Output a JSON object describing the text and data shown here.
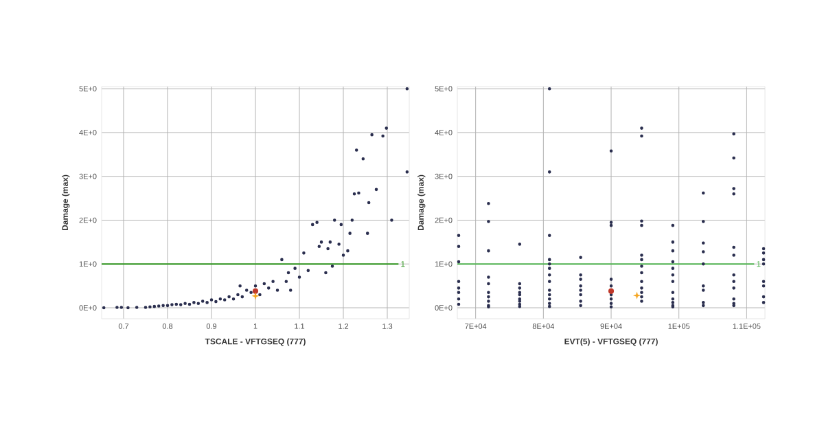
{
  "chart_data": [
    {
      "type": "scatter",
      "xlabel": "TSCALE - VFTGSEQ (777)",
      "ylabel": "Damage (max)",
      "marker": "circle",
      "grid": true,
      "xlim": [
        0.65,
        1.35
      ],
      "ylim": [
        -0.25,
        5.05
      ],
      "xticks": [
        0.7,
        0.8,
        0.9,
        1,
        1.1,
        1.2,
        1.3
      ],
      "yticks": [
        {
          "value": 0,
          "label": "0E+0"
        },
        {
          "value": 1,
          "label": "1E+0"
        },
        {
          "value": 2,
          "label": "2E+0"
        },
        {
          "value": 3,
          "label": "3E+0"
        },
        {
          "value": 4,
          "label": "4E+0"
        },
        {
          "value": 5,
          "label": "5E+0"
        }
      ],
      "ref_lines": [
        {
          "axis": "y",
          "value": 1,
          "label": "1",
          "color": "#3a9a2a"
        }
      ],
      "series": [
        {
          "color": "#2b2f4f",
          "x": [
            0.655,
            0.685,
            0.695,
            0.71,
            0.73,
            0.75,
            0.76,
            0.77,
            0.78,
            0.79,
            0.8,
            0.81,
            0.82,
            0.83,
            0.84,
            0.85,
            0.86,
            0.87,
            0.88,
            0.89,
            0.9,
            0.91,
            0.92,
            0.93,
            0.94,
            0.95,
            0.96,
            0.965,
            0.97,
            0.98,
            0.99,
            1.0,
            1.01,
            1.02,
            1.03,
            1.04,
            1.05,
            1.06,
            1.07,
            1.075,
            1.08,
            1.09,
            1.1,
            1.11,
            1.12,
            1.13,
            1.14,
            1.145,
            1.15,
            1.16,
            1.165,
            1.17,
            1.175,
            1.18,
            1.19,
            1.195,
            1.2,
            1.21,
            1.215,
            1.22,
            1.225,
            1.23,
            1.235,
            1.245,
            1.255,
            1.258,
            1.265,
            1.275,
            1.29,
            1.298,
            1.31,
            1.345,
            1.345
          ],
          "values": [
            0,
            0.01,
            0.01,
            0,
            0.01,
            0.01,
            0.02,
            0.03,
            0.04,
            0.05,
            0.05,
            0.07,
            0.08,
            0.07,
            0.1,
            0.08,
            0.12,
            0.1,
            0.15,
            0.12,
            0.18,
            0.14,
            0.2,
            0.18,
            0.25,
            0.2,
            0.3,
            0.5,
            0.25,
            0.4,
            0.35,
            0.5,
            0.3,
            0.55,
            0.45,
            0.6,
            0.4,
            1.1,
            0.6,
            0.8,
            0.4,
            0.9,
            0.7,
            1.25,
            0.85,
            1.9,
            1.95,
            1.4,
            1.5,
            0.8,
            1.35,
            1.5,
            0.95,
            2.0,
            1.45,
            1.9,
            1.2,
            1.3,
            1.7,
            2.0,
            2.6,
            3.6,
            2.62,
            3.4,
            1.7,
            2.4,
            3.95,
            2.7,
            3.92,
            4.1,
            2.0,
            3.1,
            5.0
          ]
        },
        {
          "color": "#c0392b",
          "x": [
            1.0
          ],
          "values": [
            0.38
          ]
        },
        {
          "color": "#f5a623",
          "marker": "star",
          "x": [
            1.0
          ],
          "values": [
            0.27
          ]
        }
      ]
    },
    {
      "type": "scatter",
      "xlabel": "EVT(5) - VFTGSEQ (777)",
      "ylabel": "Damage (max)",
      "marker": "circle",
      "grid": true,
      "xlim": [
        67300,
        112700
      ],
      "ylim": [
        -0.25,
        5.05
      ],
      "xticks": [
        {
          "value": 70000,
          "label": "7E+04"
        },
        {
          "value": 80000,
          "label": "8E+04"
        },
        {
          "value": 90000,
          "label": "9E+04"
        },
        {
          "value": 100000,
          "label": "1E+05"
        },
        {
          "value": 110000,
          "label": "1.1E+05"
        }
      ],
      "yticks": [
        {
          "value": 0,
          "label": "0E+0"
        },
        {
          "value": 1,
          "label": "1E+0"
        },
        {
          "value": 2,
          "label": "2E+0"
        },
        {
          "value": 3,
          "label": "3E+0"
        },
        {
          "value": 4,
          "label": "4E+0"
        },
        {
          "value": 5,
          "label": "5E+0"
        }
      ],
      "ref_lines": [
        {
          "axis": "y",
          "value": 1,
          "label": "1",
          "color": "#5cb85c"
        }
      ],
      "series": [
        {
          "color": "#2b2f4f",
          "x": [
            67500,
            67500,
            67500,
            67500,
            67500,
            67500,
            67500,
            67500,
            71900,
            71900,
            71900,
            71900,
            71900,
            71900,
            71900,
            71900,
            71900,
            71900,
            76500,
            76500,
            76500,
            76500,
            76500,
            76500,
            76500,
            76500,
            76500,
            80900,
            80900,
            80900,
            80900,
            80900,
            80900,
            80900,
            80900,
            80900,
            80900,
            80900,
            80900,
            80900,
            85500,
            85500,
            85500,
            85500,
            85500,
            85500,
            85500,
            85500,
            90000,
            90000,
            90000,
            90000,
            90000,
            90000,
            90000,
            90000,
            90000,
            94500,
            94500,
            94500,
            94500,
            94500,
            94500,
            94500,
            94500,
            94500,
            94500,
            94500,
            94500,
            94500,
            99100,
            99100,
            99100,
            99100,
            99100,
            99100,
            99100,
            99100,
            99100,
            99100,
            99100,
            99100,
            103600,
            103600,
            103600,
            103600,
            103600,
            103600,
            103600,
            103600,
            103600,
            108100,
            108100,
            108100,
            108100,
            108100,
            108100,
            108100,
            108100,
            108100,
            108100,
            108100,
            108100,
            112500,
            112500,
            112500,
            112500,
            112500,
            112500,
            112500,
            112500
          ],
          "values": [
            1.65,
            1.4,
            1.05,
            0.6,
            0.45,
            0.35,
            0.2,
            0.08,
            2.38,
            1.97,
            1.3,
            0.7,
            0.55,
            0.35,
            0.25,
            0.15,
            0.05,
            0.02,
            1.45,
            0.55,
            0.45,
            0.35,
            0.3,
            0.2,
            0.15,
            0.08,
            0.03,
            5.0,
            3.1,
            1.65,
            1.1,
            1.0,
            0.9,
            0.75,
            0.6,
            0.4,
            0.3,
            0.2,
            0.1,
            0.03,
            1.15,
            0.75,
            0.65,
            0.5,
            0.4,
            0.3,
            0.15,
            0.05,
            3.58,
            1.95,
            1.88,
            0.65,
            0.5,
            0.3,
            0.2,
            0.1,
            0.02,
            4.1,
            3.92,
            1.98,
            1.88,
            1.2,
            1.1,
            0.95,
            0.8,
            0.6,
            0.45,
            0.35,
            0.25,
            0.15,
            1.88,
            1.5,
            1.3,
            1.05,
            0.9,
            0.75,
            0.6,
            0.35,
            0.2,
            0.12,
            0.05,
            0.02,
            2.62,
            1.97,
            1.48,
            1.28,
            1.0,
            0.5,
            0.4,
            0.12,
            0.05,
            3.97,
            3.42,
            2.72,
            2.6,
            1.38,
            1.2,
            0.75,
            0.6,
            0.45,
            0.2,
            0.1,
            0.05,
            1.35,
            1.25,
            1.1,
            1.0,
            0.6,
            0.5,
            0.25,
            0.12
          ]
        },
        {
          "color": "#c0392b",
          "x": [
            90000
          ],
          "values": [
            0.38
          ]
        },
        {
          "color": "#f5a623",
          "marker": "star",
          "x": [
            93800
          ],
          "values": [
            0.28
          ]
        }
      ]
    }
  ]
}
